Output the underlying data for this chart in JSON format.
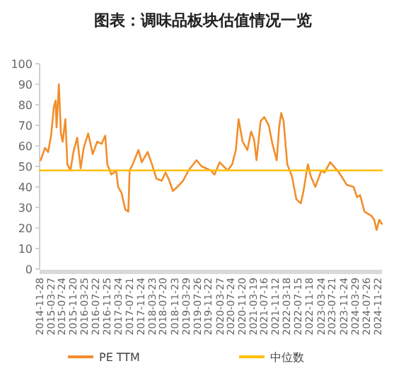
{
  "chart_data": {
    "type": "line",
    "title": "图表：调味品板块估值情况一览",
    "ylim": [
      0,
      100
    ],
    "yticks": [
      0,
      10,
      20,
      30,
      40,
      50,
      60,
      70,
      80,
      90,
      100
    ],
    "xlim": [
      "2014-11-28",
      "2025-01-10"
    ],
    "xticks": [
      "2014-11-28",
      "2015-03-27",
      "2015-07-24",
      "2015-11-20",
      "2016-03-25",
      "2016-07-22",
      "2016-11-25",
      "2017-03-24",
      "2017-07-21",
      "2017-11-24",
      "2018-03-23",
      "2018-07-20",
      "2018-11-23",
      "2019-03-29",
      "2019-07-26",
      "2019-11-22",
      "2020-03-27",
      "2020-07-24",
      "2020-11-20",
      "2021-03-19",
      "2021-07-16",
      "2021-11-12",
      "2022-03-18",
      "2022-07-15",
      "2022-11-18",
      "2023-03-24",
      "2023-07-21",
      "2023-11-24",
      "2024-03-29",
      "2024-07-26",
      "2024-11-22"
    ],
    "legend": "bottom",
    "grid": false,
    "series": [
      {
        "name": "PE TTM",
        "color": "#f28e2b",
        "x": [
          "2014-12-10",
          "2015-01-25",
          "2015-02-28",
          "2015-04-01",
          "2015-05-01",
          "2015-05-20",
          "2015-05-30",
          "2015-06-24",
          "2015-07-16",
          "2015-08-04",
          "2015-09-02",
          "2015-09-24",
          "2015-10-27",
          "2015-11-28",
          "2016-01-08",
          "2016-02-14",
          "2016-03-18",
          "2016-05-05",
          "2016-06-24",
          "2016-08-10",
          "2016-09-27",
          "2016-11-06",
          "2016-11-28",
          "2017-01-11",
          "2017-03-04",
          "2017-03-25",
          "2017-05-01",
          "2017-06-10",
          "2017-07-13",
          "2017-07-27",
          "2017-08-30",
          "2017-10-30",
          "2017-12-05",
          "2018-02-06",
          "2018-03-25",
          "2018-05-12",
          "2018-07-08",
          "2018-08-18",
          "2018-09-20",
          "2018-11-06",
          "2018-12-24",
          "2019-02-24",
          "2019-04-23",
          "2019-07-19",
          "2019-09-13",
          "2019-12-20",
          "2020-01-30",
          "2020-03-25",
          "2020-06-20",
          "2020-08-07",
          "2020-09-16",
          "2020-10-15",
          "2020-11-28",
          "2021-01-18",
          "2021-02-27",
          "2021-04-01",
          "2021-04-27",
          "2021-06-10",
          "2021-07-19",
          "2021-09-06",
          "2021-10-15",
          "2021-12-01",
          "2021-12-27",
          "2022-01-18",
          "2022-02-13",
          "2022-03-25",
          "2022-05-15",
          "2022-07-01",
          "2022-08-18",
          "2022-09-16",
          "2022-11-02",
          "2022-12-05",
          "2023-01-22",
          "2023-03-28",
          "2023-05-01",
          "2023-07-01",
          "2023-10-05",
          "2023-12-27",
          "2024-03-10",
          "2024-04-16",
          "2024-05-19",
          "2024-07-05",
          "2024-09-16",
          "2024-10-19",
          "2024-11-13",
          "2024-12-12",
          "2025-01-10"
        ],
        "values": [
          53,
          59,
          57,
          65,
          79,
          82,
          69,
          90,
          66,
          62,
          73,
          51,
          48,
          57,
          64,
          49,
          59,
          66,
          56,
          62,
          61,
          65,
          51,
          46,
          48,
          40,
          37,
          29,
          28,
          48,
          51,
          58,
          52,
          57,
          51,
          44,
          43,
          47,
          44,
          38,
          40,
          43,
          48,
          53,
          50,
          48,
          46,
          52,
          48,
          51,
          58,
          73,
          62,
          58,
          67,
          63,
          53,
          72,
          74,
          70,
          61,
          53,
          69,
          76,
          72,
          51,
          45,
          34,
          32,
          38,
          51,
          45,
          40,
          48,
          47,
          52,
          47,
          41,
          40,
          35,
          36,
          28,
          26,
          24,
          19,
          24,
          22
        ]
      },
      {
        "name": "中位数",
        "color": "#ffc000",
        "x": [
          "2014-11-28",
          "2025-01-10"
        ],
        "values": [
          48,
          48
        ]
      }
    ]
  }
}
